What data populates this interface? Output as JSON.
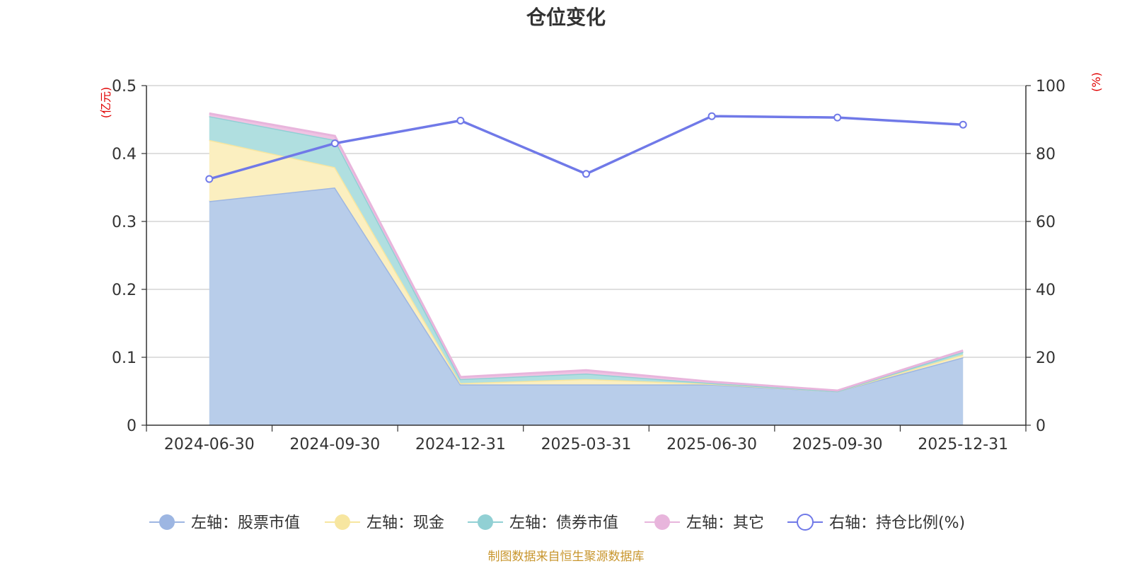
{
  "chart_data": {
    "type": "area",
    "title": "仓位变化",
    "categories": [
      "2024-06-30",
      "2024-09-30",
      "2024-12-31",
      "2025-03-31",
      "2025-06-30",
      "2025-09-30",
      "2025-12-31"
    ],
    "left_axis": {
      "unit": "(亿元)",
      "ylim": [
        0,
        0.5
      ],
      "ticks": [
        "0",
        "0.1",
        "0.2",
        "0.3",
        "0.4",
        "0.5"
      ]
    },
    "right_axis": {
      "unit": "(%)",
      "ylim": [
        0,
        100
      ],
      "ticks": [
        "0",
        "20",
        "40",
        "60",
        "80",
        "100"
      ]
    },
    "stacked_series": [
      {
        "name": "左轴：股票市值",
        "color": "#9db6e2",
        "fill": "#b8cdea",
        "values": [
          0.33,
          0.35,
          0.06,
          0.06,
          0.06,
          0.05,
          0.1
        ]
      },
      {
        "name": "左轴：现金",
        "color": "#f7e6a0",
        "fill": "#fbefc0",
        "values": [
          0.09,
          0.03,
          0.002,
          0.008,
          0.001,
          0.0,
          0.004
        ]
      },
      {
        "name": "左轴：债券市值",
        "color": "#91d0d4",
        "fill": "#b0dfe0",
        "values": [
          0.035,
          0.04,
          0.006,
          0.008,
          0.001,
          0.0,
          0.004
        ]
      },
      {
        "name": "左轴：其它",
        "color": "#e8b5dc",
        "fill": "#efc3e3",
        "values": [
          0.004,
          0.006,
          0.003,
          0.005,
          0.002,
          0.001,
          0.002
        ]
      }
    ],
    "line_series": {
      "name": "右轴：持仓比例(%)",
      "color": "#7079e8",
      "values": [
        72.5,
        83,
        89.7,
        74,
        91,
        90.6,
        88.5
      ]
    },
    "grid": true,
    "legend_position": "bottom",
    "source_note": "制图数据来自恒生聚源数据库"
  }
}
